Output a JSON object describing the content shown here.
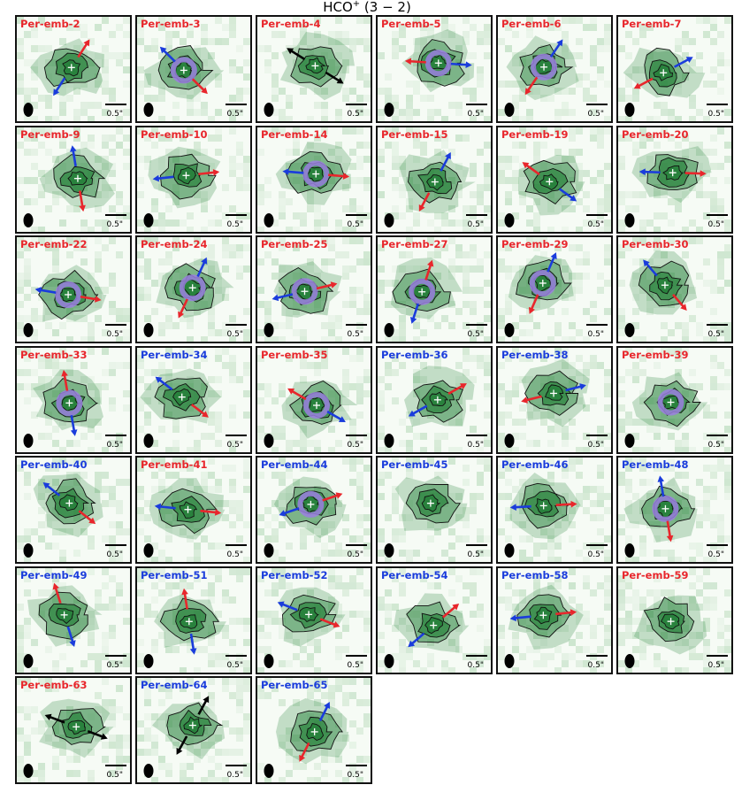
{
  "figure": {
    "title_html_base": "HCO",
    "title_sup": "+",
    "title_rest": " (3 − 2)"
  },
  "colors": {
    "red_label": "#e8262c",
    "blue_label": "#1a3cdc",
    "red_arrow": "#e8262c",
    "blue_arrow": "#1a3cdc",
    "black_arrow": "#000000",
    "highlight_ring": "#9b7fe0",
    "emission_dark": "#1e6b2e",
    "emission_light": "#cfeccb",
    "background": "#f6fbf5"
  },
  "chart_data": {
    "type": "heatmap",
    "title": "HCO+ (3 − 2)",
    "scale_bar": "0.5\"",
    "panels": [
      {
        "name": "Per-emb-2",
        "label_color": "red",
        "outflow": "red-blue",
        "ring": false
      },
      {
        "name": "Per-emb-3",
        "label_color": "red",
        "outflow": "red-blue",
        "ring": true
      },
      {
        "name": "Per-emb-4",
        "label_color": "red",
        "outflow": "black",
        "ring": false
      },
      {
        "name": "Per-emb-5",
        "label_color": "red",
        "outflow": "red-blue",
        "ring": true
      },
      {
        "name": "Per-emb-6",
        "label_color": "red",
        "outflow": "red-blue",
        "ring": true
      },
      {
        "name": "Per-emb-7",
        "label_color": "red",
        "outflow": "red-blue",
        "ring": false
      },
      {
        "name": "Per-emb-9",
        "label_color": "red",
        "outflow": "red-blue",
        "ring": false
      },
      {
        "name": "Per-emb-10",
        "label_color": "red",
        "outflow": "red-blue",
        "ring": false
      },
      {
        "name": "Per-emb-14",
        "label_color": "red",
        "outflow": "red-blue",
        "ring": true
      },
      {
        "name": "Per-emb-15",
        "label_color": "red",
        "outflow": "red-blue",
        "ring": false
      },
      {
        "name": "Per-emb-19",
        "label_color": "red",
        "outflow": "red-blue",
        "ring": false
      },
      {
        "name": "Per-emb-20",
        "label_color": "red",
        "outflow": "red-blue",
        "ring": false
      },
      {
        "name": "Per-emb-22",
        "label_color": "red",
        "outflow": "red-blue",
        "ring": true
      },
      {
        "name": "Per-emb-24",
        "label_color": "red",
        "outflow": "red-blue",
        "ring": true
      },
      {
        "name": "Per-emb-25",
        "label_color": "red",
        "outflow": "red-blue",
        "ring": true
      },
      {
        "name": "Per-emb-27",
        "label_color": "red",
        "outflow": "red-blue",
        "ring": true
      },
      {
        "name": "Per-emb-29",
        "label_color": "red",
        "outflow": "red-blue",
        "ring": true
      },
      {
        "name": "Per-emb-30",
        "label_color": "red",
        "outflow": "red-blue",
        "ring": false
      },
      {
        "name": "Per-emb-33",
        "label_color": "red",
        "outflow": "red-blue",
        "ring": true
      },
      {
        "name": "Per-emb-34",
        "label_color": "blue",
        "outflow": "red-blue",
        "ring": false
      },
      {
        "name": "Per-emb-35",
        "label_color": "red",
        "outflow": "red-blue",
        "ring": true
      },
      {
        "name": "Per-emb-36",
        "label_color": "blue",
        "outflow": "red-blue",
        "ring": false
      },
      {
        "name": "Per-emb-38",
        "label_color": "blue",
        "outflow": "red-blue",
        "ring": false
      },
      {
        "name": "Per-emb-39",
        "label_color": "red",
        "outflow": "none",
        "ring": true
      },
      {
        "name": "Per-emb-40",
        "label_color": "blue",
        "outflow": "red-blue",
        "ring": false
      },
      {
        "name": "Per-emb-41",
        "label_color": "red",
        "outflow": "red-blue",
        "ring": false
      },
      {
        "name": "Per-emb-44",
        "label_color": "blue",
        "outflow": "red-blue",
        "ring": true
      },
      {
        "name": "Per-emb-45",
        "label_color": "blue",
        "outflow": "none",
        "ring": false
      },
      {
        "name": "Per-emb-46",
        "label_color": "blue",
        "outflow": "red-blue",
        "ring": false
      },
      {
        "name": "Per-emb-48",
        "label_color": "blue",
        "outflow": "red-blue",
        "ring": true
      },
      {
        "name": "Per-emb-49",
        "label_color": "blue",
        "outflow": "red-blue",
        "ring": false
      },
      {
        "name": "Per-emb-51",
        "label_color": "blue",
        "outflow": "red-blue",
        "ring": false
      },
      {
        "name": "Per-emb-52",
        "label_color": "blue",
        "outflow": "red-blue",
        "ring": false
      },
      {
        "name": "Per-emb-54",
        "label_color": "blue",
        "outflow": "red-blue",
        "ring": false
      },
      {
        "name": "Per-emb-58",
        "label_color": "blue",
        "outflow": "red-blue",
        "ring": false
      },
      {
        "name": "Per-emb-59",
        "label_color": "red",
        "outflow": "none",
        "ring": false
      },
      {
        "name": "Per-emb-63",
        "label_color": "red",
        "outflow": "black",
        "ring": false
      },
      {
        "name": "Per-emb-64",
        "label_color": "blue",
        "outflow": "black",
        "ring": false
      },
      {
        "name": "Per-emb-65",
        "label_color": "blue",
        "outflow": "red-blue",
        "ring": false
      }
    ]
  }
}
